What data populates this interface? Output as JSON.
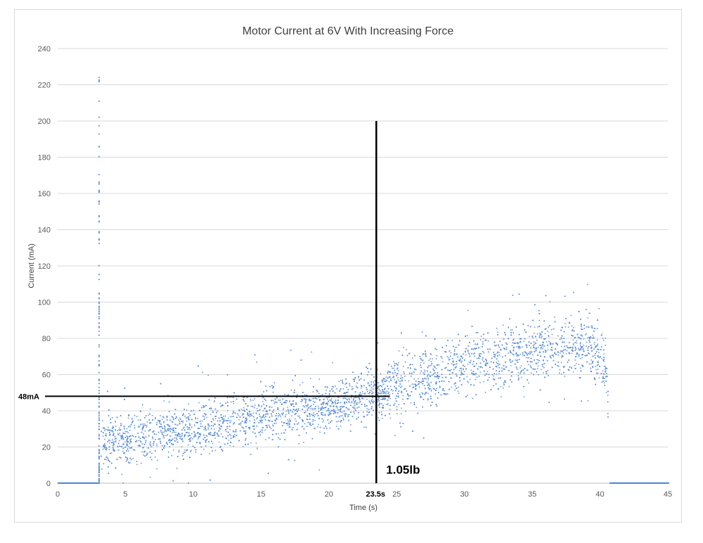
{
  "chart_data": {
    "type": "scatter",
    "title": "Motor Current at 6V With Increasing Force",
    "xlabel": "Time (s)",
    "ylabel": "Current  (mA)",
    "xlim": [
      0,
      45
    ],
    "ylim": [
      0,
      240
    ],
    "xticks": [
      0,
      5,
      10,
      15,
      20,
      25,
      30,
      35,
      40,
      45
    ],
    "yticks": [
      0,
      20,
      40,
      60,
      80,
      100,
      120,
      140,
      160,
      180,
      200,
      220,
      240
    ],
    "grid": "horizontal",
    "legend": "none",
    "marker_color": "#5b8fd6",
    "line_color": "#000000",
    "series": [
      {
        "x_range": [
          0,
          45
        ],
        "trend": [
          {
            "x": 0,
            "y": 0
          },
          {
            "x": 3.0,
            "y": 0
          },
          {
            "x": 3.2,
            "y": 22
          },
          {
            "x": 5,
            "y": 24
          },
          {
            "x": 10,
            "y": 30
          },
          {
            "x": 15,
            "y": 37
          },
          {
            "x": 20,
            "y": 43
          },
          {
            "x": 23.5,
            "y": 48
          },
          {
            "x": 25,
            "y": 55
          },
          {
            "x": 28.5,
            "y": 60
          },
          {
            "x": 30,
            "y": 66
          },
          {
            "x": 33,
            "y": 70
          },
          {
            "x": 35,
            "y": 73
          },
          {
            "x": 37,
            "y": 76
          },
          {
            "x": 39,
            "y": 77
          },
          {
            "x": 40.5,
            "y": 65
          },
          {
            "x": 40.7,
            "y": 0
          },
          {
            "x": 45,
            "y": 0
          }
        ],
        "spike": {
          "x": 3.05,
          "y_max": 224
        }
      }
    ],
    "annotations": [
      {
        "type": "vline",
        "x": 23.5,
        "y_from": 0,
        "y_to": 200
      },
      {
        "type": "hline",
        "y": 48,
        "x_from": 0,
        "x_to": 24.5
      },
      {
        "type": "label",
        "text": "48mA",
        "x": 0,
        "y": 48
      },
      {
        "type": "label",
        "text": "23.5s",
        "x": 23.5,
        "y": 0
      },
      {
        "type": "label",
        "text": "1.05lb",
        "x": 23.5,
        "y": 4
      }
    ]
  }
}
